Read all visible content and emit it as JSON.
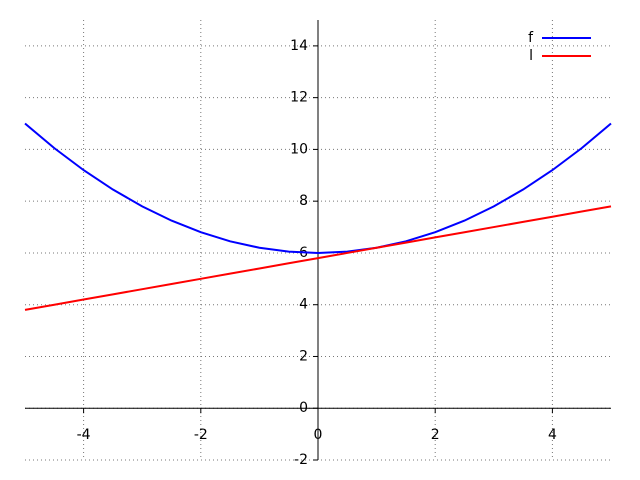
{
  "chart_data": {
    "type": "line",
    "x": [
      -5,
      -4.5,
      -4,
      -3.5,
      -3,
      -2.5,
      -2,
      -1.5,
      -1,
      -0.5,
      0,
      0.5,
      1,
      1.5,
      2,
      2.5,
      3,
      3.5,
      4,
      4.5,
      5
    ],
    "series": [
      {
        "name": "f",
        "color": "#0000ff",
        "values": [
          11,
          10.05,
          9.2,
          8.45,
          7.8,
          7.25,
          6.8,
          6.45,
          6.2,
          6.05,
          6,
          6.05,
          6.2,
          6.45,
          6.8,
          7.25,
          7.8,
          8.45,
          9.2,
          10.05,
          11
        ]
      },
      {
        "name": "l",
        "color": "#ff0000",
        "values": [
          3.8,
          4.0,
          4.2,
          4.4,
          4.6,
          4.8,
          5.0,
          5.2,
          5.4,
          5.6,
          5.8,
          6.0,
          6.2,
          6.4,
          6.6,
          6.8,
          7.0,
          7.2,
          7.4,
          7.6,
          7.8
        ]
      }
    ],
    "xlim": [
      -5,
      5
    ],
    "ylim": [
      -2,
      15
    ],
    "xticks": [
      -4,
      -2,
      0,
      2,
      4
    ],
    "yticks": [
      -2,
      0,
      2,
      4,
      6,
      8,
      10,
      12,
      14
    ],
    "grid": true,
    "legend": "upper right"
  }
}
